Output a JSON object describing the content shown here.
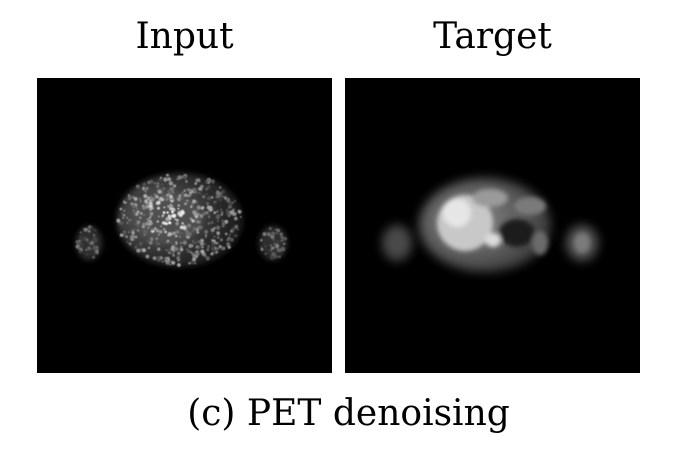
{
  "figure": {
    "panels": [
      {
        "label": "Input"
      },
      {
        "label": "Target"
      }
    ],
    "caption": "(c) PET denoising"
  }
}
